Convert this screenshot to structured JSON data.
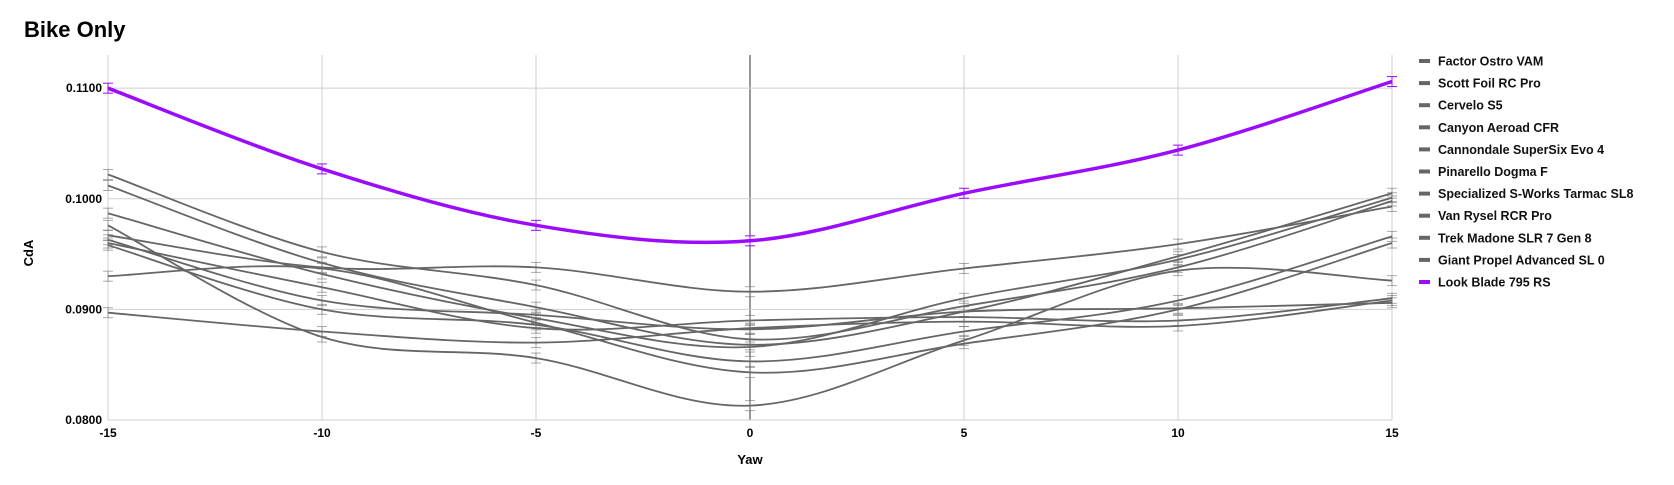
{
  "chart_data": {
    "type": "line",
    "title": "Bike Only",
    "xlabel": "Yaw",
    "ylabel": "CdA",
    "x": [
      -15,
      -10,
      -5,
      0,
      5,
      10,
      15
    ],
    "xlim": [
      -15,
      15
    ],
    "ylim": [
      0.08,
      0.113
    ],
    "xticks": [
      -15,
      -10,
      -5,
      0,
      5,
      10,
      15
    ],
    "yticks": [
      0.08,
      0.09,
      0.1,
      0.11
    ],
    "ytick_labels": [
      "0.0800",
      "0.0900",
      "0.1000",
      "0.1100"
    ],
    "grid": true,
    "error_bars": true,
    "legend": "right",
    "colors": {
      "base": "#666666",
      "highlight": "#9b0cff"
    },
    "series": [
      {
        "name": "Factor Ostro VAM",
        "values": [
          0.1022,
          0.0952,
          0.0922,
          0.0873,
          0.0903,
          0.0938,
          0.0998
        ]
      },
      {
        "name": "Scott Foil RC Pro",
        "values": [
          0.1012,
          0.0942,
          0.0902,
          0.0868,
          0.0898,
          0.0948,
          0.1005
        ]
      },
      {
        "name": "Cervelo S5",
        "values": [
          0.0987,
          0.0932,
          0.0892,
          0.0866,
          0.091,
          0.0945,
          0.1001
        ]
      },
      {
        "name": "Canyon Aeroad CFR",
        "values": [
          0.0967,
          0.0938,
          0.0938,
          0.0916,
          0.0937,
          0.0959,
          0.0993
        ]
      },
      {
        "name": "Cannondale SuperSix Evo 4",
        "values": [
          0.0963,
          0.0908,
          0.0895,
          0.0882,
          0.0898,
          0.0901,
          0.0906
        ]
      },
      {
        "name": "Pinarello Dogma F",
        "values": [
          0.096,
          0.092,
          0.0883,
          0.089,
          0.0893,
          0.089,
          0.091
        ]
      },
      {
        "name": "Specialized S-Works Tarmac SL8",
        "values": [
          0.0958,
          0.09,
          0.0886,
          0.0853,
          0.088,
          0.0908,
          0.0966
        ]
      },
      {
        "name": "Van Rysel RCR Pro",
        "values": [
          0.093,
          0.0937,
          0.0888,
          0.0843,
          0.0869,
          0.09,
          0.096
        ]
      },
      {
        "name": "Trek Madone SLR 7 Gen 8",
        "values": [
          0.0976,
          0.0875,
          0.0856,
          0.0813,
          0.0872,
          0.0935,
          0.0926
        ]
      },
      {
        "name": "Giant Propel Advanced SL 0",
        "values": [
          0.0897,
          0.088,
          0.087,
          0.0883,
          0.0889,
          0.0885,
          0.0908
        ]
      },
      {
        "name": "Look Blade 795 RS",
        "values": [
          0.11,
          0.1027,
          0.0976,
          0.0962,
          0.1005,
          0.1044,
          0.1106
        ],
        "highlight": true
      }
    ]
  }
}
